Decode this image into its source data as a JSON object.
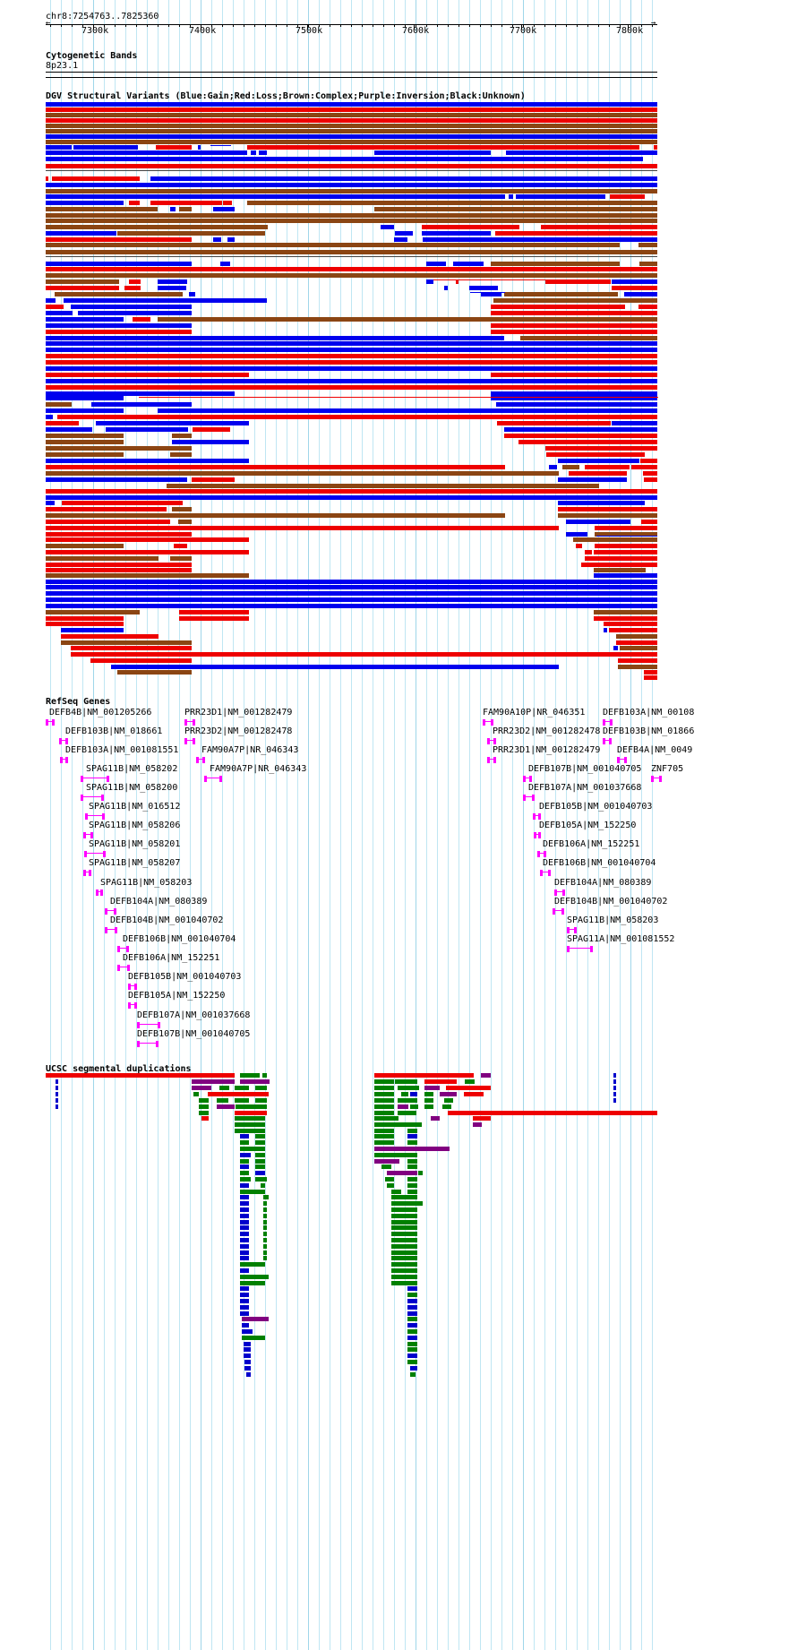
{
  "ruler": {
    "range_label": "chr8:7254763..7825360",
    "ticks": [
      "7300k",
      "7400k",
      "7500k",
      "7600k",
      "7700k",
      "7800k"
    ]
  },
  "tracks": {
    "cytoband": {
      "title": "Cytogenetic Bands",
      "band": "8p23.1"
    },
    "dgv": {
      "title": "DGV Structural Variants (Blue:Gain;Red:Loss;Brown:Complex;Purple:Inversion;Black:Unknown)"
    },
    "refseq": {
      "title": "RefSeq Genes"
    },
    "segdup": {
      "title": "UCSC segmental duplications"
    }
  },
  "genes": [
    "DEFB4B|NM_001205266",
    "DEFB103B|NM_018661",
    "DEFB103A|NM_001081551",
    "SPAG11B|NM_058202",
    "SPAG11B|NM_058200",
    "SPAG11B|NM_016512",
    "SPAG11B|NM_058206",
    "SPAG11B|NM_058201",
    "SPAG11B|NM_058207",
    "SPAG11B|NM_058203",
    "DEFB104A|NM_080389",
    "DEFB104B|NM_001040702",
    "DEFB106B|NM_001040704",
    "DEFB106A|NM_152251",
    "DEFB105B|NM_001040703",
    "DEFB105A|NM_152250",
    "DEFB107A|NM_001037668",
    "DEFB107B|NM_001040705",
    "PRR23D1|NM_001282479",
    "PRR23D2|NM_001282478",
    "FAM90A7P|NR_046343",
    "FAM90A7P|NR_046343",
    "FAM90A10P|NR_046351",
    "PRR23D2|NM_001282478",
    "PRR23D1|NM_001282479",
    "DEFB107B|NM_001040705",
    "DEFB107A|NM_001037668",
    "DEFB105B|NM_001040703",
    "DEFB105A|NM_152250",
    "DEFB106A|NM_152251",
    "DEFB106B|NM_001040704",
    "DEFB104A|NM_080389",
    "DEFB104B|NM_001040702",
    "SPAG11B|NM_058203",
    "SPAG11A|NM_001081552",
    "DEFB103A|NM_00108",
    "DEFB103B|NM_01866",
    "DEFB4A|NM_0049",
    "ZNF705"
  ],
  "colors": {
    "gain": "#0000ee",
    "loss": "#ee0000",
    "complex": "#8b4513",
    "inversion": "#800080",
    "unknown": "#000000",
    "gene": "#ff00ff",
    "segdup_red": "#ee0000",
    "segdup_green": "#008000",
    "segdup_blue": "#0000cc",
    "segdup_purple": "#800080",
    "grid": "#bfe6f3"
  }
}
